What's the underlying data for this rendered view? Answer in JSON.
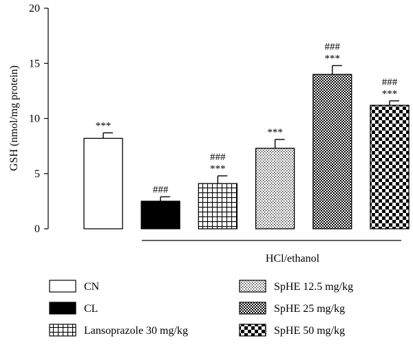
{
  "chart_data": {
    "type": "bar",
    "ylabel": "GSH (nmol/mg protein)",
    "ylim": [
      0,
      20
    ],
    "yticks": [
      "0",
      "5",
      "10",
      "15",
      "20"
    ],
    "group_label": "HCl/ethanol",
    "grid": false,
    "legend_position": "bottom",
    "categories": [
      "CN",
      "CL",
      "Lansoprazole 30 mg/kg",
      "SpHE 12.5 mg/kg",
      "SpHE 25 mg/kg",
      "SpHE 50 mg/kg"
    ],
    "values": [
      8.2,
      2.5,
      4.1,
      7.3,
      14.0,
      11.2
    ],
    "errors": [
      0.5,
      0.4,
      0.7,
      0.8,
      0.8,
      0.4
    ],
    "annotations": [
      [
        "***"
      ],
      [
        "###"
      ],
      [
        "###",
        "***"
      ],
      [
        "***"
      ],
      [
        "###",
        "***"
      ],
      [
        "###",
        "***"
      ]
    ],
    "patterns": [
      "white",
      "black",
      "grid",
      "dots",
      "fine-check",
      "checker"
    ]
  }
}
